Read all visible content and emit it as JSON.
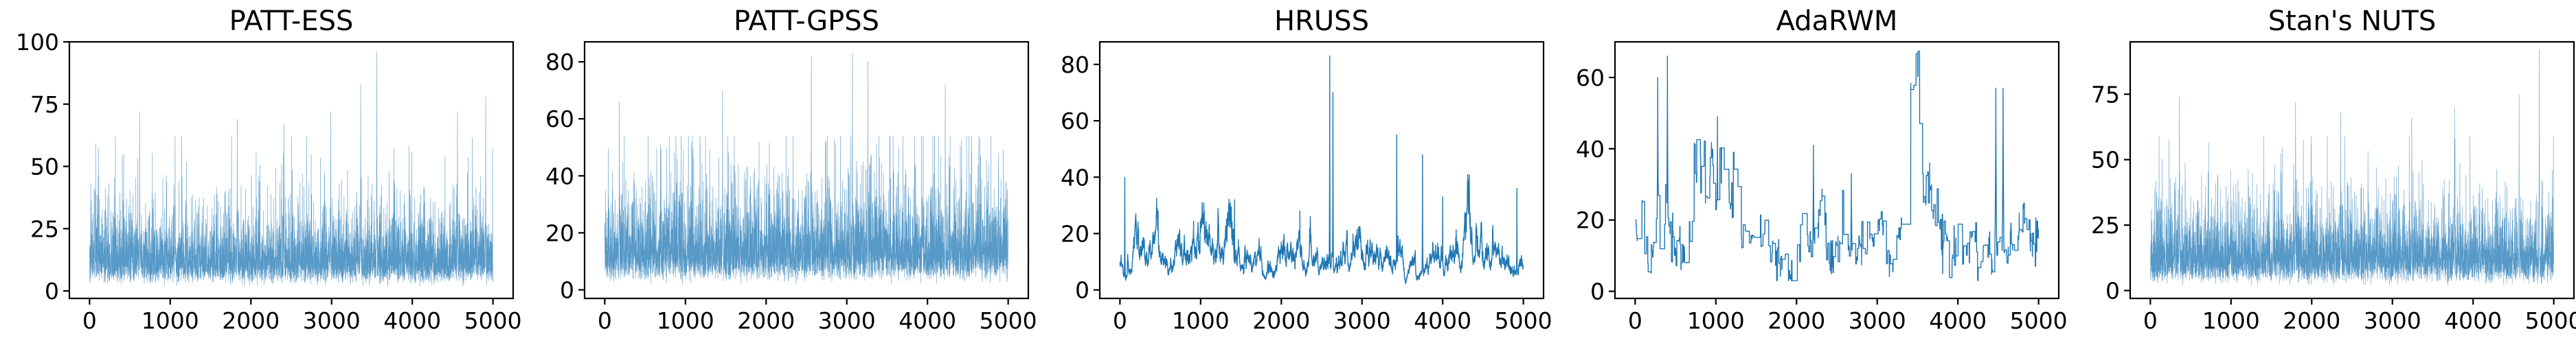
{
  "chart_data": [
    {
      "type": "line",
      "title": "PATT-ESS",
      "xlabel": "",
      "ylabel": "",
      "xlim": [
        -250,
        5250
      ],
      "ylim": [
        -3,
        100
      ],
      "xticks": [
        0,
        1000,
        2000,
        3000,
        4000,
        5000
      ],
      "xtick_labels": [
        "0",
        "1000",
        "2000",
        "3000",
        "4000",
        "5000"
      ],
      "yticks": [
        0,
        25,
        50,
        75,
        100
      ],
      "ytick_labels": [
        "0",
        "25",
        "50",
        "75",
        "100"
      ],
      "grid": false,
      "series_color": "#1f77b4",
      "n_points": 5000,
      "trace_style": "thin-fast-mixing",
      "approx_typical_range": [
        5,
        30
      ],
      "approx_mean": 14,
      "peaks": [
        [
          620,
          72
        ],
        [
          1060,
          62
        ],
        [
          1830,
          69
        ],
        [
          2410,
          67
        ],
        [
          2990,
          72
        ],
        [
          3360,
          83
        ],
        [
          3560,
          96
        ],
        [
          4560,
          72
        ],
        [
          4910,
          78
        ]
      ]
    },
    {
      "type": "line",
      "title": "PATT-GPSS",
      "xlabel": "",
      "ylabel": "",
      "xlim": [
        -250,
        5250
      ],
      "ylim": [
        -3,
        87
      ],
      "xticks": [
        0,
        1000,
        2000,
        3000,
        4000,
        5000
      ],
      "xtick_labels": [
        "0",
        "1000",
        "2000",
        "3000",
        "4000",
        "5000"
      ],
      "yticks": [
        0,
        20,
        40,
        60,
        80
      ],
      "ytick_labels": [
        "0",
        "20",
        "40",
        "60",
        "80"
      ],
      "grid": false,
      "series_color": "#1f77b4",
      "n_points": 5000,
      "trace_style": "thin-fast-mixing",
      "approx_typical_range": [
        5,
        35
      ],
      "approx_mean": 15,
      "peaks": [
        [
          180,
          66
        ],
        [
          1460,
          70
        ],
        [
          2560,
          82
        ],
        [
          3070,
          83
        ],
        [
          3260,
          80
        ],
        [
          4220,
          72
        ],
        [
          4880,
          48
        ]
      ]
    },
    {
      "type": "line",
      "title": "HRUSS",
      "xlabel": "",
      "ylabel": "",
      "xlim": [
        -250,
        5250
      ],
      "ylim": [
        -3,
        88
      ],
      "xticks": [
        0,
        1000,
        2000,
        3000,
        4000,
        5000
      ],
      "xtick_labels": [
        "0",
        "1000",
        "2000",
        "3000",
        "4000",
        "5000"
      ],
      "yticks": [
        0,
        20,
        40,
        60,
        80
      ],
      "ytick_labels": [
        "0",
        "20",
        "40",
        "60",
        "80"
      ],
      "grid": false,
      "series_color": "#1f77b4",
      "n_points": 5000,
      "trace_style": "autocorrelated",
      "approx_mean": 12,
      "peaks": [
        [
          60,
          40
        ],
        [
          1420,
          32
        ],
        [
          2230,
          28
        ],
        [
          2600,
          83
        ],
        [
          2640,
          70
        ],
        [
          3430,
          55
        ],
        [
          3750,
          48
        ],
        [
          4000,
          33
        ],
        [
          4920,
          36
        ]
      ]
    },
    {
      "type": "line",
      "title": "AdaRWM",
      "xlabel": "",
      "ylabel": "",
      "xlim": [
        -250,
        5250
      ],
      "ylim": [
        -2,
        70
      ],
      "xticks": [
        0,
        1000,
        2000,
        3000,
        4000,
        5000
      ],
      "xtick_labels": [
        "0",
        "1000",
        "2000",
        "3000",
        "4000",
        "5000"
      ],
      "yticks": [
        0,
        20,
        40,
        60
      ],
      "ytick_labels": [
        "0",
        "20",
        "40",
        "60"
      ],
      "grid": false,
      "series_color": "#1f77b4",
      "n_points": 5000,
      "trace_style": "sticky-random-walk",
      "approx_mean": 15,
      "peaks": [
        [
          280,
          60
        ],
        [
          400,
          66
        ],
        [
          1020,
          49
        ],
        [
          2210,
          41
        ],
        [
          2680,
          33
        ],
        [
          3650,
          36
        ],
        [
          4470,
          57
        ],
        [
          4560,
          57
        ],
        [
          4760,
          22
        ]
      ]
    },
    {
      "type": "line",
      "title": "Stan's NUTS",
      "xlabel": "",
      "ylabel": "",
      "xlim": [
        -250,
        5250
      ],
      "ylim": [
        -3,
        95
      ],
      "xticks": [
        0,
        1000,
        2000,
        3000,
        4000,
        5000
      ],
      "xtick_labels": [
        "0",
        "1000",
        "2000",
        "3000",
        "4000",
        "5000"
      ],
      "yticks": [
        0,
        25,
        50,
        75
      ],
      "ytick_labels": [
        "0",
        "25",
        "50",
        "75"
      ],
      "grid": false,
      "series_color": "#1f77b4",
      "n_points": 5000,
      "trace_style": "dense-fast-mixing",
      "approx_typical_range": [
        5,
        30
      ],
      "approx_mean": 14,
      "peaks": [
        [
          360,
          74
        ],
        [
          1800,
          72
        ],
        [
          2360,
          68
        ],
        [
          3240,
          66
        ],
        [
          3770,
          70
        ],
        [
          4570,
          75
        ],
        [
          4820,
          92
        ]
      ]
    }
  ]
}
